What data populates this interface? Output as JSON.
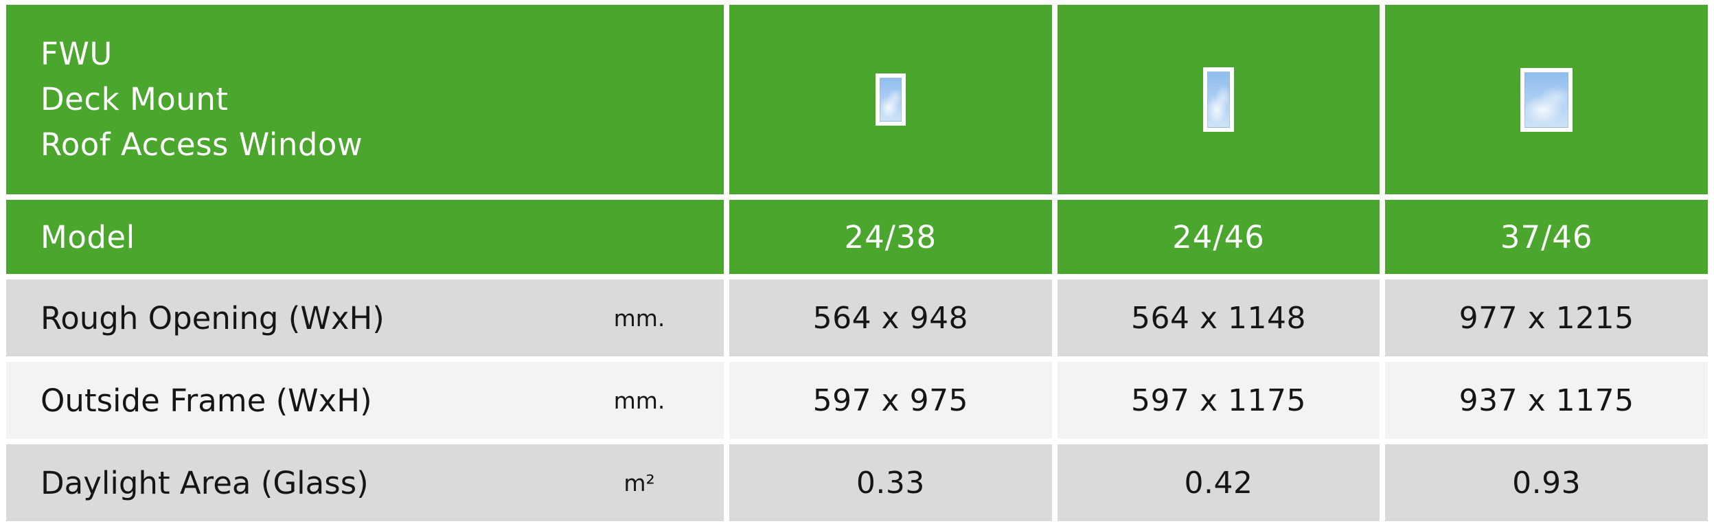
{
  "table": {
    "title_lines": [
      "FWU",
      "Deck Mount",
      "Roof Access Window"
    ],
    "model_row_label": "Model",
    "models": [
      "24/38",
      "24/46",
      "37/46"
    ],
    "rows": [
      {
        "label": "Rough Opening (WxH)",
        "unit": "mm.",
        "values": [
          "564 x 948",
          "564 x 1148",
          "977 x 1215"
        ]
      },
      {
        "label": "Outside Frame (WxH)",
        "unit": "mm.",
        "values": [
          "597 x 975",
          "597 x 1175",
          "937 x 1175"
        ]
      },
      {
        "label": "Daylight Area (Glass)",
        "unit": "m²",
        "values": [
          "0.33",
          "0.42",
          "0.93"
        ]
      }
    ],
    "window_icons": [
      "window-thumbnail-24-38",
      "window-thumbnail-24-46",
      "window-thumbnail-37-46"
    ],
    "colors": {
      "green": "#4aa62c",
      "row_gray": "#d9dadb",
      "row_light": "#f2f3f3",
      "sky_top": "#8fbeee",
      "sky_bottom": "#cfe3f7",
      "text_dark": "#151515",
      "text_light": "#ffffff"
    }
  }
}
